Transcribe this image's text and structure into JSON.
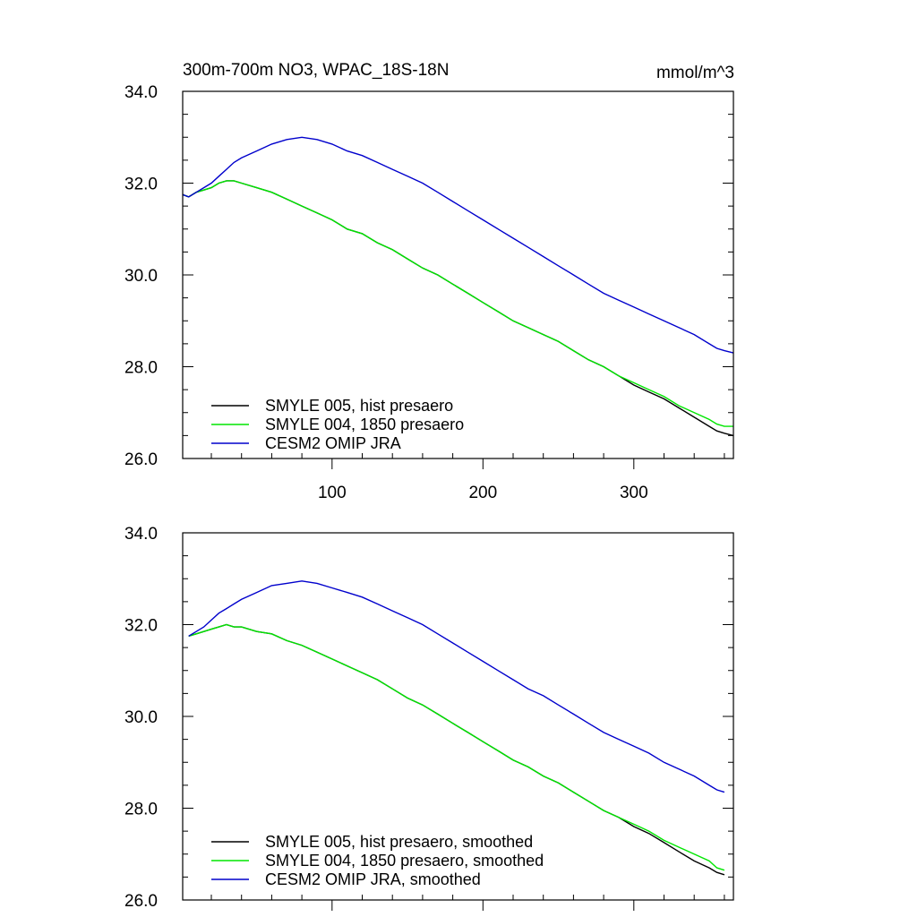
{
  "chart_data": [
    {
      "type": "line",
      "title": "300m-700m NO3, WPAC_18S-18N",
      "units": "mmol/m^3",
      "xlim": [
        1,
        366
      ],
      "ylim": [
        26.0,
        34.0
      ],
      "xticks": [
        100,
        200,
        300
      ],
      "yticks": [
        "26.0",
        "28.0",
        "30.0",
        "32.0",
        "34.0"
      ],
      "grid": false,
      "legend": "bottom-left",
      "series": [
        {
          "name": "SMYLE 005, hist presaero",
          "color": "#000000",
          "x": [
            1,
            5,
            10,
            15,
            20,
            25,
            30,
            35,
            40,
            50,
            60,
            70,
            80,
            90,
            100,
            110,
            120,
            130,
            140,
            150,
            160,
            170,
            180,
            190,
            200,
            210,
            220,
            230,
            240,
            250,
            260,
            270,
            280,
            290,
            300,
            310,
            320,
            330,
            340,
            350,
            355,
            360,
            366
          ],
          "y": [
            31.75,
            31.7,
            31.8,
            31.85,
            31.9,
            32.0,
            32.05,
            32.05,
            32.0,
            31.9,
            31.8,
            31.65,
            31.5,
            31.35,
            31.2,
            31.0,
            30.9,
            30.7,
            30.55,
            30.35,
            30.15,
            30.0,
            29.8,
            29.6,
            29.4,
            29.2,
            29.0,
            28.85,
            28.7,
            28.55,
            28.35,
            28.15,
            28.0,
            27.8,
            27.6,
            27.45,
            27.3,
            27.1,
            26.9,
            26.7,
            26.6,
            26.55,
            26.5
          ]
        },
        {
          "name": "SMYLE 004, 1850 presaero",
          "color": "#00e600",
          "x": [
            1,
            5,
            10,
            15,
            20,
            25,
            30,
            35,
            40,
            50,
            60,
            70,
            80,
            90,
            100,
            110,
            120,
            130,
            140,
            150,
            160,
            170,
            180,
            190,
            200,
            210,
            220,
            230,
            240,
            250,
            260,
            270,
            280,
            290,
            300,
            310,
            320,
            330,
            340,
            350,
            355,
            360,
            366
          ],
          "y": [
            31.75,
            31.7,
            31.8,
            31.85,
            31.9,
            32.0,
            32.05,
            32.05,
            32.0,
            31.9,
            31.8,
            31.65,
            31.5,
            31.35,
            31.2,
            31.0,
            30.9,
            30.7,
            30.55,
            30.35,
            30.15,
            30.0,
            29.8,
            29.6,
            29.4,
            29.2,
            29.0,
            28.85,
            28.7,
            28.55,
            28.35,
            28.15,
            28.0,
            27.8,
            27.65,
            27.5,
            27.35,
            27.15,
            27.0,
            26.85,
            26.75,
            26.7,
            26.7
          ]
        },
        {
          "name": "CESM2 OMIP JRA",
          "color": "#0000cc",
          "x": [
            1,
            5,
            10,
            15,
            20,
            25,
            30,
            35,
            40,
            50,
            60,
            70,
            80,
            90,
            100,
            110,
            120,
            130,
            140,
            150,
            160,
            170,
            180,
            190,
            200,
            210,
            220,
            230,
            240,
            250,
            260,
            270,
            280,
            290,
            300,
            310,
            320,
            330,
            340,
            350,
            355,
            360,
            366
          ],
          "y": [
            31.75,
            31.7,
            31.8,
            31.9,
            32.0,
            32.15,
            32.3,
            32.45,
            32.55,
            32.7,
            32.85,
            32.95,
            33.0,
            32.95,
            32.85,
            32.7,
            32.6,
            32.45,
            32.3,
            32.15,
            32.0,
            31.8,
            31.6,
            31.4,
            31.2,
            31.0,
            30.8,
            30.6,
            30.4,
            30.2,
            30.0,
            29.8,
            29.6,
            29.45,
            29.3,
            29.15,
            29.0,
            28.85,
            28.7,
            28.5,
            28.4,
            28.35,
            28.3
          ]
        }
      ]
    },
    {
      "type": "line",
      "xlim": [
        1,
        366
      ],
      "ylim": [
        26.0,
        34.0
      ],
      "yticks": [
        "26.0",
        "28.0",
        "30.0",
        "32.0",
        "34.0"
      ],
      "grid": false,
      "legend": "bottom-left",
      "series": [
        {
          "name": "SMYLE 005, hist presaero, smoothed",
          "color": "#000000",
          "x": [
            5,
            10,
            15,
            20,
            25,
            30,
            35,
            40,
            50,
            60,
            70,
            80,
            90,
            100,
            110,
            120,
            130,
            140,
            150,
            160,
            170,
            180,
            190,
            200,
            210,
            220,
            230,
            240,
            250,
            260,
            270,
            280,
            290,
            300,
            310,
            320,
            330,
            340,
            350,
            355,
            360
          ],
          "y": [
            31.75,
            31.8,
            31.85,
            31.9,
            31.95,
            32.0,
            31.95,
            31.95,
            31.85,
            31.8,
            31.65,
            31.55,
            31.4,
            31.25,
            31.1,
            30.95,
            30.8,
            30.6,
            30.4,
            30.25,
            30.05,
            29.85,
            29.65,
            29.45,
            29.25,
            29.05,
            28.9,
            28.7,
            28.55,
            28.35,
            28.15,
            27.95,
            27.8,
            27.6,
            27.45,
            27.25,
            27.05,
            26.85,
            26.7,
            26.6,
            26.55
          ]
        },
        {
          "name": "SMYLE 004, 1850 presaero, smoothed",
          "color": "#00e600",
          "x": [
            5,
            10,
            15,
            20,
            25,
            30,
            35,
            40,
            50,
            60,
            70,
            80,
            90,
            100,
            110,
            120,
            130,
            140,
            150,
            160,
            170,
            180,
            190,
            200,
            210,
            220,
            230,
            240,
            250,
            260,
            270,
            280,
            290,
            300,
            310,
            320,
            330,
            340,
            350,
            355,
            360
          ],
          "y": [
            31.75,
            31.8,
            31.85,
            31.9,
            31.95,
            32.0,
            31.95,
            31.95,
            31.85,
            31.8,
            31.65,
            31.55,
            31.4,
            31.25,
            31.1,
            30.95,
            30.8,
            30.6,
            30.4,
            30.25,
            30.05,
            29.85,
            29.65,
            29.45,
            29.25,
            29.05,
            28.9,
            28.7,
            28.55,
            28.35,
            28.15,
            27.95,
            27.8,
            27.65,
            27.5,
            27.3,
            27.15,
            27.0,
            26.85,
            26.7,
            26.65
          ]
        },
        {
          "name": "CESM2 OMIP JRA, smoothed",
          "color": "#0000cc",
          "x": [
            5,
            10,
            15,
            20,
            25,
            30,
            35,
            40,
            50,
            60,
            70,
            80,
            90,
            100,
            110,
            120,
            130,
            140,
            150,
            160,
            170,
            180,
            190,
            200,
            210,
            220,
            230,
            240,
            250,
            260,
            270,
            280,
            290,
            300,
            310,
            320,
            330,
            340,
            350,
            355,
            360
          ],
          "y": [
            31.75,
            31.85,
            31.95,
            32.1,
            32.25,
            32.35,
            32.45,
            32.55,
            32.7,
            32.85,
            32.9,
            32.95,
            32.9,
            32.8,
            32.7,
            32.6,
            32.45,
            32.3,
            32.15,
            32.0,
            31.8,
            31.6,
            31.4,
            31.2,
            31.0,
            30.8,
            30.6,
            30.45,
            30.25,
            30.05,
            29.85,
            29.65,
            29.5,
            29.35,
            29.2,
            29.0,
            28.85,
            28.7,
            28.5,
            28.4,
            28.35
          ]
        }
      ]
    }
  ]
}
